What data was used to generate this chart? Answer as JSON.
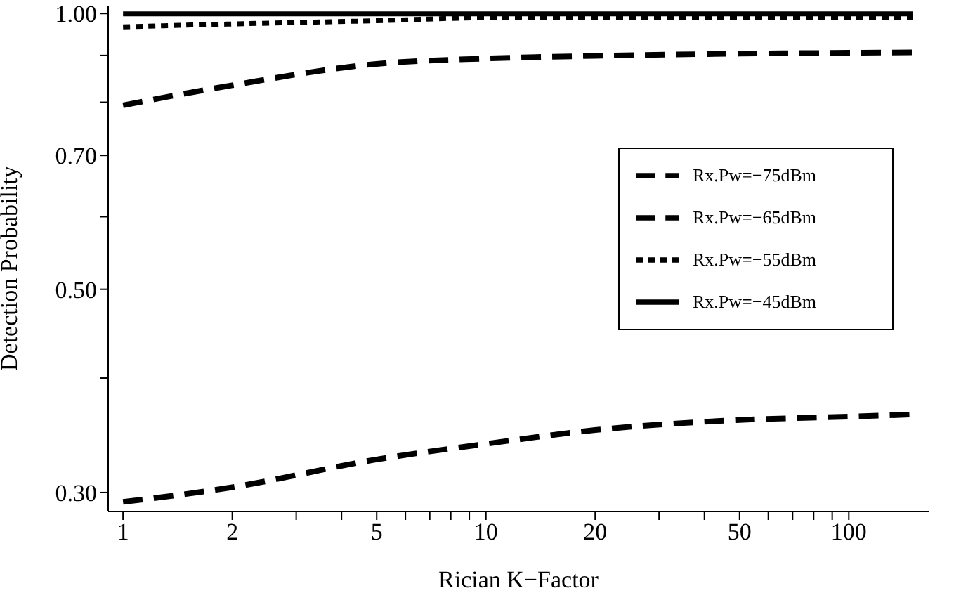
{
  "chart_data": {
    "type": "line",
    "xlabel": "Rician K−Factor",
    "ylabel": "Detection Probability",
    "log": "xy",
    "grid": false,
    "legend": "right",
    "marker": "none",
    "x": [
      1,
      2,
      5,
      10,
      20,
      50,
      100,
      150
    ],
    "xlim": [
      0.91,
      166
    ],
    "xticks": [
      1,
      2,
      {
        "value": 3,
        "label": null
      },
      {
        "value": 4,
        "label": null
      },
      5,
      {
        "value": 6,
        "label": null
      },
      {
        "value": 7,
        "label": null
      },
      {
        "value": 8,
        "label": null
      },
      {
        "value": 9,
        "label": null
      },
      10,
      20,
      {
        "value": 30,
        "label": null
      },
      {
        "value": 40,
        "label": null
      },
      50,
      {
        "value": 60,
        "label": null
      },
      {
        "value": 70,
        "label": null
      },
      {
        "value": 80,
        "label": null
      },
      {
        "value": 90,
        "label": null
      },
      100
    ],
    "ylim": [
      0.286,
      1.02
    ],
    "yticks": [
      {
        "value": 0.3,
        "label": "0.30"
      },
      {
        "value": 0.4,
        "label": null
      },
      {
        "value": 0.5,
        "label": "0.50"
      },
      {
        "value": 0.6,
        "label": null
      },
      {
        "value": 0.7,
        "label": "0.70"
      },
      {
        "value": 0.8,
        "label": null
      },
      {
        "value": 0.9,
        "label": null
      },
      {
        "value": 1,
        "label": "1.00"
      }
    ],
    "series": [
      {
        "name": "Rx.Pw=−75dBm",
        "color": "#000000",
        "line_style": "dashed",
        "values": [
          0.293,
          0.304,
          0.326,
          0.339,
          0.351,
          0.36,
          0.363,
          0.365
        ]
      },
      {
        "name": "Rx.Pw=−65dBm",
        "color": "#000000",
        "line_style": "dashed",
        "values": [
          0.794,
          0.835,
          0.881,
          0.893,
          0.899,
          0.904,
          0.906,
          0.907
        ]
      },
      {
        "name": "Rx.Pw=−55dBm",
        "color": "#000000",
        "line_style": "dotted",
        "values": [
          0.967,
          0.974,
          0.982,
          0.989,
          0.989,
          0.989,
          0.989,
          0.989
        ]
      },
      {
        "name": "Rx.Pw=−45dBm",
        "color": "#000000",
        "line_style": "solid",
        "values": [
          0.999,
          0.999,
          0.999,
          0.999,
          0.999,
          0.999,
          0.999,
          0.999
        ]
      }
    ]
  }
}
